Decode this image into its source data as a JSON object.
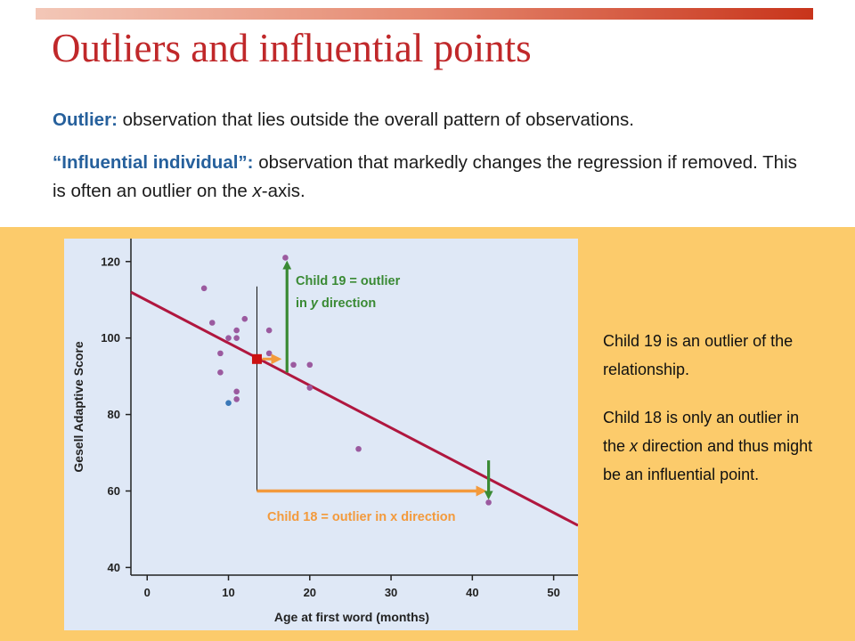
{
  "title": "Outliers and influential points",
  "definitions": {
    "outlier_term": "Outlier:",
    "outlier_text": " observation that lies outside the overall pattern of observations.",
    "influential_term": "“Influential individual”:",
    "influential_text_1": " observation that markedly changes the regression if removed. This is often an outlier on the ",
    "influential_text_x": "x",
    "influential_text_2": "-axis."
  },
  "side_note": {
    "p1": "Child 19 is an outlier of the relationship.",
    "p2_a": "Child 18 is only an outlier in the ",
    "p2_x": "x",
    "p2_b": " direction and thus might be an influential point."
  },
  "annotations": {
    "child19_line1": "Child 19 = outlier",
    "child19_line2_a": "in ",
    "child19_line2_y": "y",
    "child19_line2_b": " direction",
    "child18": "Child 18 = outlier in x direction"
  },
  "colors": {
    "title": "#c0282a",
    "term": "#26609c",
    "orange_bg": "#fccb6b",
    "plot_bg": "#dfe8f6",
    "regression": "#b0173f",
    "point": "#9b5a9f",
    "point_alt": "#3a78b8",
    "arrow_green": "#3a8a34",
    "arrow_orange": "#f39a3c",
    "marker": "#cc1111"
  },
  "chart_data": {
    "type": "scatter",
    "xlabel": "Age at first word (months)",
    "ylabel": "Gesell Adaptive Score",
    "xlim": [
      -2,
      53
    ],
    "ylim": [
      38,
      126
    ],
    "x_ticks": [
      0,
      10,
      20,
      30,
      40,
      50
    ],
    "y_ticks": [
      40,
      60,
      80,
      100,
      120
    ],
    "points": [
      {
        "x": 7,
        "y": 113
      },
      {
        "x": 8,
        "y": 104
      },
      {
        "x": 9,
        "y": 96
      },
      {
        "x": 9,
        "y": 91
      },
      {
        "x": 10,
        "y": 100
      },
      {
        "x": 10,
        "y": 83,
        "alt": true
      },
      {
        "x": 11,
        "y": 102
      },
      {
        "x": 11,
        "y": 100
      },
      {
        "x": 11,
        "y": 86
      },
      {
        "x": 11,
        "y": 84
      },
      {
        "x": 12,
        "y": 105
      },
      {
        "x": 15,
        "y": 102
      },
      {
        "x": 15,
        "y": 96
      },
      {
        "x": 17,
        "y": 121
      },
      {
        "x": 18,
        "y": 93
      },
      {
        "x": 20,
        "y": 93
      },
      {
        "x": 20,
        "y": 87
      },
      {
        "x": 26,
        "y": 71
      },
      {
        "x": 42,
        "y": 57
      }
    ],
    "regression": {
      "x0": -2,
      "y0": 112,
      "x1": 53,
      "y1": 51
    }
  }
}
